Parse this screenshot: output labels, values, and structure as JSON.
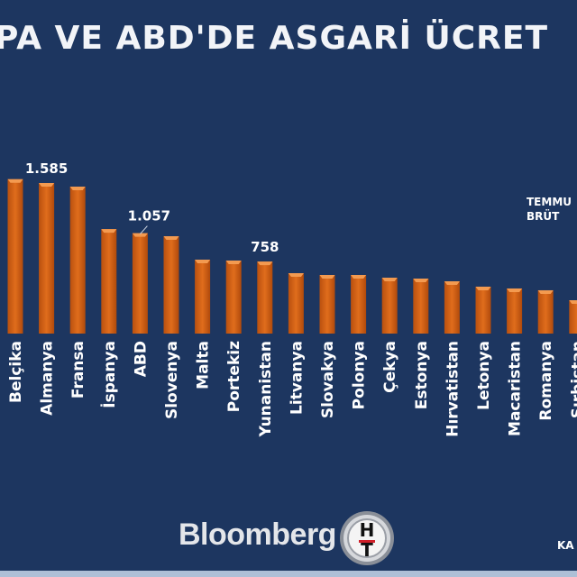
{
  "header": {
    "title": "PA VE ABD'DE ASGARİ ÜCRET"
  },
  "note": {
    "line1": "TEMMU",
    "line2": "BRÜT"
  },
  "footer": {
    "brand": "Bloomberg",
    "logo_letters": "HT",
    "source": "KA"
  },
  "colors": {
    "background": "#1d3660",
    "bar": "#d9661a",
    "text": "#ffffff"
  },
  "chart_data": {
    "type": "bar",
    "title": "PA VE ABD'DE ASGARİ ÜCRET",
    "categories": [
      "Belçika",
      "Almanya",
      "Fransa",
      "İspanya",
      "ABD",
      "Slovenya",
      "Malta",
      "Portekiz",
      "Yunanistan",
      "Litvanya",
      "Slovakya",
      "Polonya",
      "Çekya",
      "Estonya",
      "Hırvatistan",
      "Letonya",
      "Macaristan",
      "Romanya",
      "Sırbistan"
    ],
    "values": [
      1625,
      1585,
      1547,
      1100,
      1057,
      1025,
      778,
      769,
      758,
      636,
      617,
      617,
      588,
      579,
      550,
      494,
      475,
      456,
      351
    ],
    "data_labels": [
      null,
      "1.585",
      null,
      null,
      "1.057",
      null,
      null,
      null,
      "758",
      null,
      null,
      null,
      null,
      null,
      null,
      null,
      null,
      null,
      null
    ],
    "ylim": [
      0,
      1700
    ],
    "grid": false,
    "xlabel": "",
    "ylabel": ""
  }
}
